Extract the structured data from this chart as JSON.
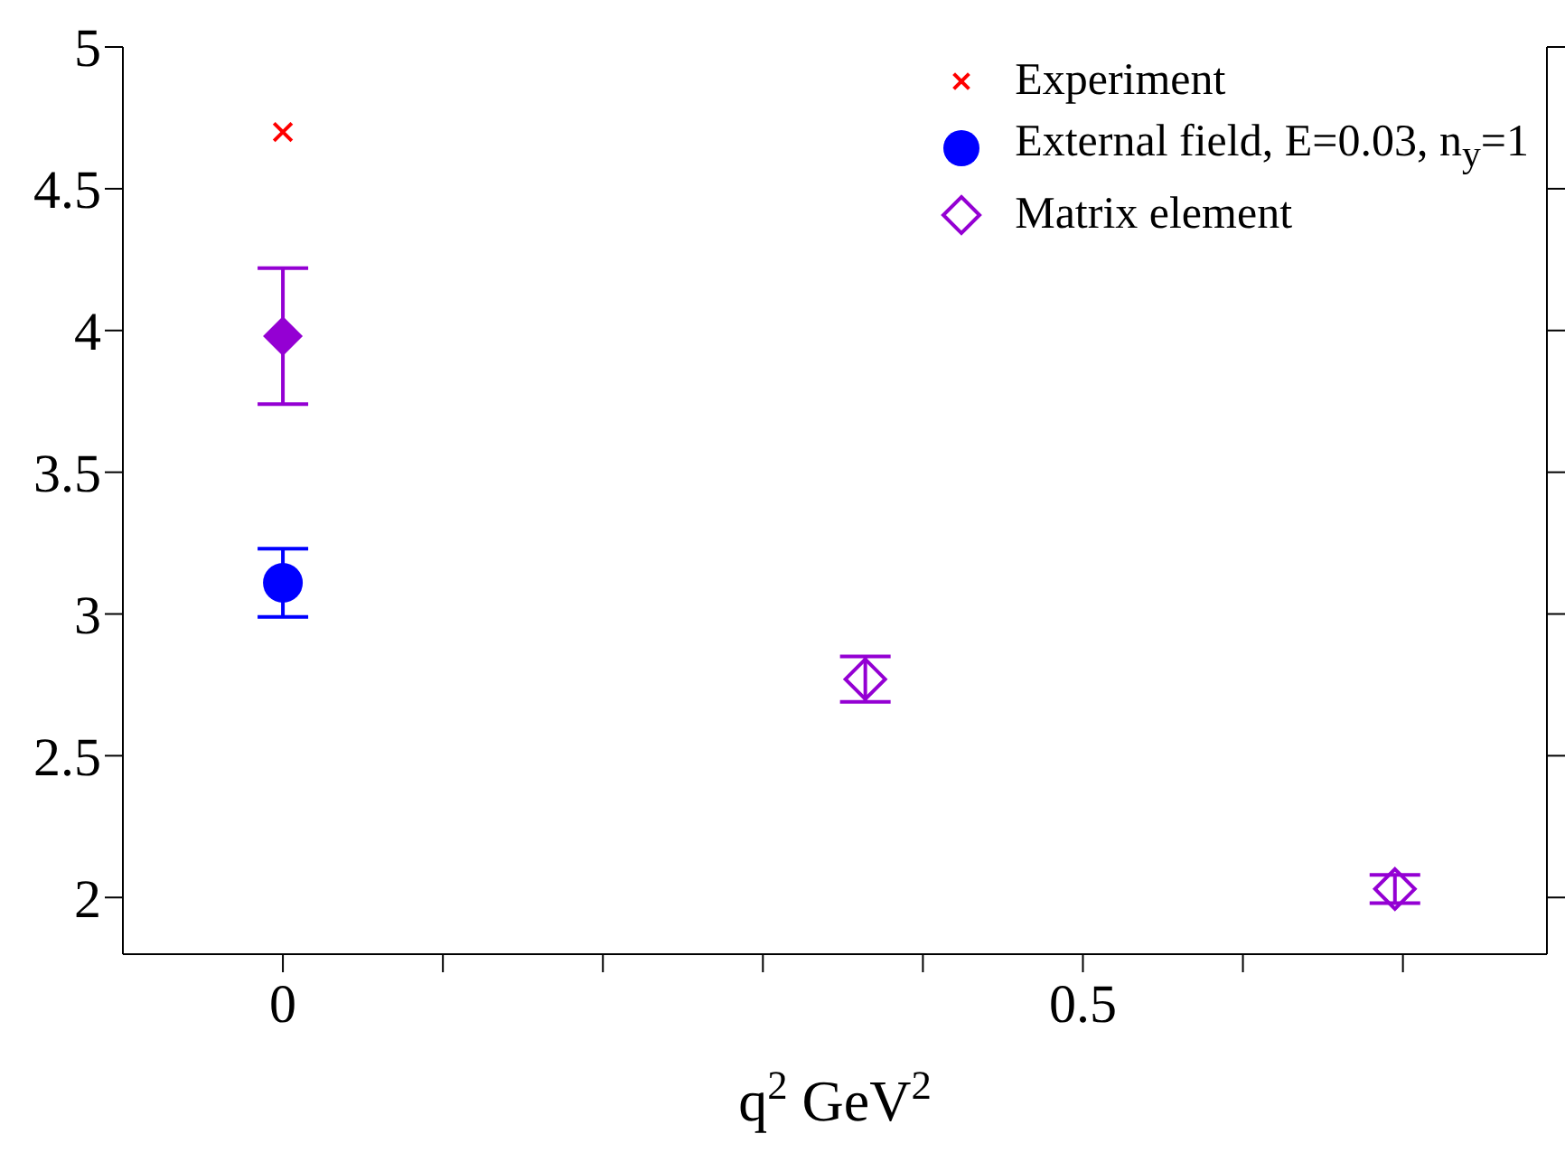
{
  "chart_data": {
    "type": "scatter",
    "xlabel": "q$^{2}$ GeV$^{2}$",
    "xlim": [
      -0.1,
      0.79
    ],
    "xticks": [
      0,
      {
        "value": 0.1,
        "label": null
      },
      {
        "value": 0.2,
        "label": null
      },
      {
        "value": 0.3,
        "label": null
      },
      {
        "value": 0.4,
        "label": null
      },
      0.5,
      {
        "value": 0.6,
        "label": null
      },
      {
        "value": 0.7,
        "label": null
      }
    ],
    "ylim": [
      1.8,
      5
    ],
    "yticks": [
      2,
      2.5,
      3,
      3.5,
      4,
      4.5,
      5
    ],
    "grid": false,
    "legend": "top right",
    "series": [
      {
        "name": "Experiment",
        "color": "#ff0000",
        "marker": "cross",
        "x": [
          0
        ],
        "values": [
          4.7
        ]
      },
      {
        "name": "External field, E=0.03, n$_{y}$=1",
        "color": "#0000ff",
        "marker": "circle",
        "x": [
          0
        ],
        "values": [
          3.11
        ],
        "errors": [
          0.12
        ]
      },
      {
        "name": "Matrix element",
        "color": "#9400d3",
        "marker": "diamond",
        "x": [
          0.364,
          0.695
        ],
        "values": [
          2.77,
          2.03
        ],
        "errors": [
          0.08,
          0.05
        ]
      },
      {
        "color": "#9400d3",
        "marker": "diamond",
        "x": [
          0
        ],
        "values": [
          3.98
        ],
        "errors": [
          0.24
        ]
      }
    ]
  }
}
